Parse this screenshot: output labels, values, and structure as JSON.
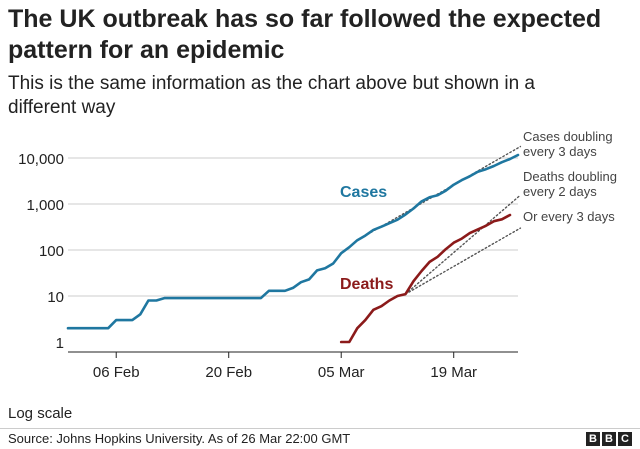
{
  "title": "The UK outbreak has so far followed the expected pattern for an epidemic",
  "subtitle": "This is the same information as the chart above but shown in a different way",
  "scale_note": "Log scale",
  "source": "Source: Johns Hopkins University. As of 26 Mar 22:00 GMT",
  "logo": [
    "B",
    "B",
    "C"
  ],
  "colors": {
    "cases": "#1f77a0",
    "deaths": "#8b1a1a",
    "grid": "#cccccc",
    "reference": "#555555"
  },
  "chart_data": {
    "type": "line",
    "scale": "log",
    "ylim": [
      1,
      10000
    ],
    "y_ticks": [
      {
        "value": 1,
        "label": "1"
      },
      {
        "value": 10,
        "label": "10"
      },
      {
        "value": 100,
        "label": "100"
      },
      {
        "value": 1000,
        "label": "1,000"
      },
      {
        "value": 10000,
        "label": "10,000"
      }
    ],
    "x_range": [
      "2020-01-31",
      "2020-03-27"
    ],
    "x_ticks": [
      {
        "date": "2020-02-06",
        "label": "06 Feb"
      },
      {
        "date": "2020-02-20",
        "label": "20 Feb"
      },
      {
        "date": "2020-03-05",
        "label": "05 Mar"
      },
      {
        "date": "2020-03-19",
        "label": "19 Mar"
      }
    ],
    "series": [
      {
        "name": "Cases",
        "points": [
          [
            "2020-01-31",
            2
          ],
          [
            "2020-02-05",
            2
          ],
          [
            "2020-02-06",
            3
          ],
          [
            "2020-02-08",
            3
          ],
          [
            "2020-02-09",
            4
          ],
          [
            "2020-02-10",
            8
          ],
          [
            "2020-02-11",
            8
          ],
          [
            "2020-02-12",
            9
          ],
          [
            "2020-02-13",
            9
          ],
          [
            "2020-02-16",
            9
          ],
          [
            "2020-02-20",
            9
          ],
          [
            "2020-02-24",
            9
          ],
          [
            "2020-02-25",
            13
          ],
          [
            "2020-02-27",
            13
          ],
          [
            "2020-02-28",
            15
          ],
          [
            "2020-02-29",
            20
          ],
          [
            "2020-03-01",
            23
          ],
          [
            "2020-03-02",
            36
          ],
          [
            "2020-03-03",
            40
          ],
          [
            "2020-03-04",
            51
          ],
          [
            "2020-03-05",
            85
          ],
          [
            "2020-03-06",
            115
          ],
          [
            "2020-03-07",
            163
          ],
          [
            "2020-03-08",
            206
          ],
          [
            "2020-03-09",
            273
          ],
          [
            "2020-03-10",
            321
          ],
          [
            "2020-03-11",
            382
          ],
          [
            "2020-03-12",
            456
          ],
          [
            "2020-03-13",
            590
          ],
          [
            "2020-03-14",
            800
          ],
          [
            "2020-03-15",
            1140
          ],
          [
            "2020-03-16",
            1400
          ],
          [
            "2020-03-17",
            1550
          ],
          [
            "2020-03-18",
            1950
          ],
          [
            "2020-03-19",
            2630
          ],
          [
            "2020-03-20",
            3300
          ],
          [
            "2020-03-21",
            4000
          ],
          [
            "2020-03-22",
            5000
          ],
          [
            "2020-03-23",
            5700
          ],
          [
            "2020-03-24",
            6700
          ],
          [
            "2020-03-25",
            8100
          ],
          [
            "2020-03-26",
            9500
          ],
          [
            "2020-03-27",
            11600
          ]
        ]
      },
      {
        "name": "Deaths",
        "points": [
          [
            "2020-03-05",
            1
          ],
          [
            "2020-03-06",
            1
          ],
          [
            "2020-03-07",
            2
          ],
          [
            "2020-03-08",
            3
          ],
          [
            "2020-03-09",
            5
          ],
          [
            "2020-03-10",
            6
          ],
          [
            "2020-03-11",
            8
          ],
          [
            "2020-03-12",
            10
          ],
          [
            "2020-03-13",
            11
          ],
          [
            "2020-03-14",
            21
          ],
          [
            "2020-03-15",
            35
          ],
          [
            "2020-03-16",
            55
          ],
          [
            "2020-03-17",
            71
          ],
          [
            "2020-03-18",
            104
          ],
          [
            "2020-03-19",
            144
          ],
          [
            "2020-03-20",
            177
          ],
          [
            "2020-03-21",
            233
          ],
          [
            "2020-03-22",
            281
          ],
          [
            "2020-03-23",
            335
          ],
          [
            "2020-03-24",
            422
          ],
          [
            "2020-03-25",
            465
          ],
          [
            "2020-03-26",
            578
          ]
        ]
      }
    ],
    "reference_lines": [
      {
        "label": "Cases doubling every 3 days",
        "start": [
          "2020-03-07",
          163
        ],
        "doubling_days": 3
      },
      {
        "label": "Deaths doubling every 2 days",
        "start": [
          "2020-03-13",
          11
        ],
        "doubling_days": 2
      },
      {
        "label": "Or every 3 days",
        "start": [
          "2020-03-13",
          11
        ],
        "doubling_days": 3
      }
    ]
  }
}
